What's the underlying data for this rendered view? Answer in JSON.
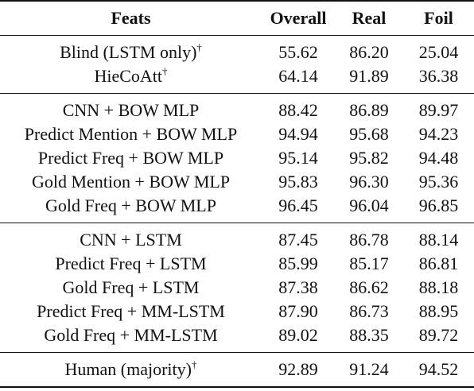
{
  "table": {
    "headers": [
      "Feats",
      "Overall",
      "Real",
      "Foil"
    ],
    "groups": [
      [
        {
          "feat": "Blind (LSTM only)",
          "mark": "†",
          "overall": "55.62",
          "real": "86.20",
          "foil": "25.04"
        },
        {
          "feat": "HieCoAtt",
          "mark": "†",
          "overall": "64.14",
          "real": "91.89",
          "foil": "36.38"
        }
      ],
      [
        {
          "feat": "CNN + BOW MLP",
          "mark": "",
          "overall": "88.42",
          "real": "86.89",
          "foil": "89.97"
        },
        {
          "feat": "Predict Mention + BOW MLP",
          "mark": "",
          "overall": "94.94",
          "real": "95.68",
          "foil": "94.23"
        },
        {
          "feat": "Predict Freq + BOW MLP",
          "mark": "",
          "overall": "95.14",
          "real": "95.82",
          "foil": "94.48"
        },
        {
          "feat": "Gold Mention + BOW MLP",
          "mark": "",
          "overall": "95.83",
          "real": "96.30",
          "foil": "95.36"
        },
        {
          "feat": "Gold Freq + BOW MLP",
          "mark": "",
          "overall": "96.45",
          "real": "96.04",
          "foil": "96.85"
        }
      ],
      [
        {
          "feat": "CNN + LSTM",
          "mark": "",
          "overall": "87.45",
          "real": "86.78",
          "foil": "88.14"
        },
        {
          "feat": "Predict Freq + LSTM",
          "mark": "",
          "overall": "85.99",
          "real": "85.17",
          "foil": "86.81"
        },
        {
          "feat": "Gold Freq + LSTM",
          "mark": "",
          "overall": "87.38",
          "real": "86.62",
          "foil": "88.18"
        },
        {
          "feat": "Predict Freq + MM-LSTM",
          "mark": "",
          "overall": "87.90",
          "real": "86.73",
          "foil": "88.95"
        },
        {
          "feat": "Gold Freq + MM-LSTM",
          "mark": "",
          "overall": "89.02",
          "real": "88.35",
          "foil": "89.72"
        }
      ],
      [
        {
          "feat": "Human (majority)",
          "mark": "†",
          "overall": "92.89",
          "real": "91.24",
          "foil": "94.52"
        }
      ]
    ]
  }
}
